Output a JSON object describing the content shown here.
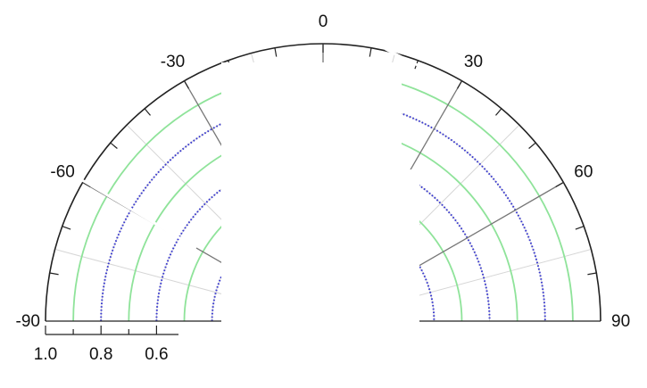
{
  "chart_data": {
    "type": "polar",
    "angle_ticks": [
      "-90",
      "-60",
      "-30",
      "0",
      "30",
      "60",
      "90"
    ],
    "angle_tick_values": [
      -90,
      -60,
      -30,
      0,
      30,
      60,
      90
    ],
    "angle_range": [
      -90,
      90
    ],
    "radial_axis": {
      "range": [
        0,
        1.0
      ],
      "direction": "decreasing-outward-to-center",
      "tick_labels": [
        "1.0",
        "0.8",
        "0.6"
      ],
      "tick_values": [
        1.0,
        0.8,
        0.6
      ]
    },
    "grid": true,
    "series": [
      {
        "style": "dotted",
        "radii": [
          0.8,
          0.6,
          0.4,
          0.2
        ]
      },
      {
        "style": "solid",
        "radii": [
          0.9,
          0.7,
          0.5,
          0.3
        ]
      }
    ],
    "colors": {
      "frame": "#222222",
      "dotted_series": "#3a3ad0",
      "solid_series": "#8fe39a",
      "grid": "#d6d6d6",
      "spoke": "#777777"
    }
  }
}
